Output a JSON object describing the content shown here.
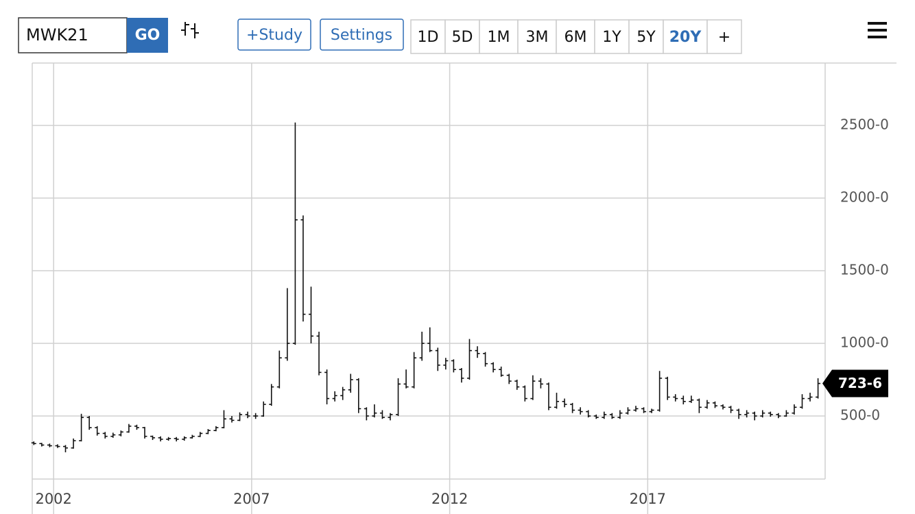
{
  "toolbar": {
    "symbol": "MWK21",
    "go": "GO",
    "study": "+Study",
    "settings": "Settings",
    "ranges": [
      "1D",
      "5D",
      "1M",
      "3M",
      "6M",
      "1Y",
      "5Y",
      "20Y",
      "+"
    ],
    "active_range": 7
  },
  "chart_data": {
    "type": "ohlc",
    "xlim": [
      2001.46,
      2021.48
    ],
    "xticks": [
      2002,
      2007,
      2012,
      2017
    ],
    "ylim": [
      66,
      2929
    ],
    "yticks": [
      {
        "value": 500,
        "label": "500-0"
      },
      {
        "value": 1000,
        "label": "1000-0"
      },
      {
        "value": 1500,
        "label": "1500-0"
      },
      {
        "value": 2000,
        "label": "2000-0"
      },
      {
        "value": 2500,
        "label": "2500-0"
      }
    ],
    "grid": true,
    "color": "#111111",
    "last_price": {
      "value": 723.75,
      "label": "723-6"
    },
    "series": [
      {
        "x": [
          2001.5,
          2001.7,
          2001.9,
          2002.1,
          2002.3,
          2002.5,
          2002.7,
          2002.9,
          2003.1,
          2003.3,
          2003.5,
          2003.7,
          2003.9,
          2004.1,
          2004.3,
          2004.5,
          2004.7,
          2004.9,
          2005.1,
          2005.3,
          2005.5,
          2005.7,
          2005.9,
          2006.1,
          2006.3,
          2006.5,
          2006.7,
          2006.9,
          2007.1,
          2007.3,
          2007.5,
          2007.7,
          2007.9,
          2008.1,
          2008.3,
          2008.5,
          2008.7,
          2008.9,
          2009.1,
          2009.3,
          2009.5,
          2009.7,
          2009.9,
          2010.1,
          2010.3,
          2010.5,
          2010.7,
          2010.9,
          2011.1,
          2011.3,
          2011.5,
          2011.7,
          2011.9,
          2012.1,
          2012.3,
          2012.5,
          2012.7,
          2012.9,
          2013.1,
          2013.3,
          2013.5,
          2013.7,
          2013.9,
          2014.1,
          2014.3,
          2014.5,
          2014.7,
          2014.9,
          2015.1,
          2015.3,
          2015.5,
          2015.7,
          2015.9,
          2016.1,
          2016.3,
          2016.5,
          2016.7,
          2016.9,
          2017.1,
          2017.3,
          2017.5,
          2017.7,
          2017.9,
          2018.1,
          2018.3,
          2018.5,
          2018.7,
          2018.9,
          2019.1,
          2019.3,
          2019.5,
          2019.7,
          2019.9,
          2020.1,
          2020.3,
          2020.5,
          2020.7,
          2020.9,
          2021.1,
          2021.3
        ],
        "values": [
          [
            315,
            325,
            300,
            310
          ],
          [
            310,
            315,
            290,
            300
          ],
          [
            300,
            310,
            285,
            295
          ],
          [
            295,
            305,
            280,
            290
          ],
          [
            290,
            300,
            250,
            280
          ],
          [
            280,
            345,
            275,
            330
          ],
          [
            330,
            515,
            325,
            490
          ],
          [
            490,
            500,
            405,
            420
          ],
          [
            420,
            430,
            365,
            380
          ],
          [
            380,
            390,
            345,
            360
          ],
          [
            360,
            385,
            350,
            370
          ],
          [
            370,
            400,
            360,
            390
          ],
          [
            390,
            445,
            385,
            430
          ],
          [
            430,
            440,
            405,
            420
          ],
          [
            420,
            425,
            345,
            360
          ],
          [
            360,
            365,
            335,
            350
          ],
          [
            350,
            360,
            325,
            340
          ],
          [
            340,
            355,
            330,
            345
          ],
          [
            345,
            355,
            325,
            340
          ],
          [
            340,
            360,
            330,
            350
          ],
          [
            350,
            370,
            345,
            360
          ],
          [
            360,
            390,
            355,
            380
          ],
          [
            380,
            410,
            375,
            400
          ],
          [
            400,
            430,
            395,
            420
          ],
          [
            420,
            540,
            415,
            480
          ],
          [
            480,
            500,
            455,
            470
          ],
          [
            470,
            525,
            465,
            510
          ],
          [
            510,
            530,
            485,
            500
          ],
          [
            500,
            520,
            480,
            500
          ],
          [
            500,
            600,
            495,
            580
          ],
          [
            580,
            720,
            570,
            700
          ],
          [
            700,
            950,
            690,
            900
          ],
          [
            900,
            1380,
            880,
            1000
          ],
          [
            1000,
            2520,
            990,
            1850
          ],
          [
            1850,
            1880,
            1150,
            1200
          ],
          [
            1200,
            1390,
            1000,
            1050
          ],
          [
            1050,
            1080,
            780,
            800
          ],
          [
            800,
            820,
            580,
            620
          ],
          [
            620,
            670,
            600,
            640
          ],
          [
            640,
            700,
            610,
            680
          ],
          [
            680,
            790,
            660,
            750
          ],
          [
            750,
            760,
            520,
            550
          ],
          [
            550,
            560,
            470,
            500
          ],
          [
            500,
            580,
            490,
            520
          ],
          [
            520,
            540,
            480,
            490
          ],
          [
            490,
            520,
            470,
            510
          ],
          [
            510,
            760,
            500,
            720
          ],
          [
            720,
            820,
            690,
            700
          ],
          [
            700,
            940,
            690,
            900
          ],
          [
            900,
            1080,
            880,
            1000
          ],
          [
            1000,
            1110,
            940,
            950
          ],
          [
            950,
            970,
            810,
            850
          ],
          [
            850,
            900,
            820,
            880
          ],
          [
            880,
            890,
            800,
            820
          ],
          [
            820,
            830,
            730,
            760
          ],
          [
            760,
            1030,
            750,
            950
          ],
          [
            950,
            980,
            900,
            930
          ],
          [
            930,
            940,
            840,
            860
          ],
          [
            860,
            870,
            800,
            820
          ],
          [
            820,
            840,
            770,
            780
          ],
          [
            780,
            790,
            720,
            740
          ],
          [
            740,
            750,
            680,
            700
          ],
          [
            700,
            710,
            600,
            620
          ],
          [
            620,
            780,
            610,
            740
          ],
          [
            740,
            760,
            690,
            720
          ],
          [
            720,
            730,
            540,
            560
          ],
          [
            560,
            660,
            550,
            600
          ],
          [
            600,
            620,
            560,
            580
          ],
          [
            580,
            590,
            520,
            540
          ],
          [
            540,
            560,
            510,
            530
          ],
          [
            530,
            540,
            490,
            500
          ],
          [
            500,
            510,
            480,
            490
          ],
          [
            490,
            530,
            480,
            510
          ],
          [
            510,
            520,
            480,
            490
          ],
          [
            490,
            540,
            480,
            520
          ],
          [
            520,
            560,
            510,
            540
          ],
          [
            540,
            570,
            530,
            550
          ],
          [
            550,
            560,
            520,
            530
          ],
          [
            530,
            550,
            520,
            540
          ],
          [
            540,
            810,
            530,
            760
          ],
          [
            760,
            770,
            610,
            630
          ],
          [
            630,
            650,
            600,
            620
          ],
          [
            620,
            640,
            580,
            600
          ],
          [
            600,
            640,
            590,
            610
          ],
          [
            610,
            620,
            520,
            560
          ],
          [
            560,
            610,
            550,
            590
          ],
          [
            590,
            600,
            555,
            570
          ],
          [
            570,
            580,
            545,
            560
          ],
          [
            560,
            570,
            520,
            540
          ],
          [
            540,
            550,
            480,
            510
          ],
          [
            510,
            540,
            490,
            520
          ],
          [
            520,
            530,
            470,
            500
          ],
          [
            500,
            540,
            490,
            520
          ],
          [
            520,
            530,
            495,
            510
          ],
          [
            510,
            520,
            485,
            500
          ],
          [
            500,
            540,
            495,
            520
          ],
          [
            520,
            580,
            510,
            560
          ],
          [
            560,
            650,
            550,
            620
          ],
          [
            620,
            660,
            600,
            630
          ],
          [
            630,
            760,
            620,
            723.75
          ]
        ]
      }
    ]
  }
}
